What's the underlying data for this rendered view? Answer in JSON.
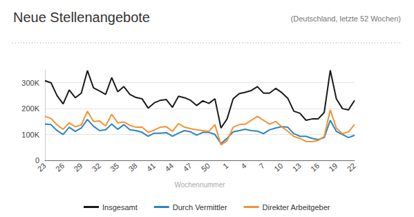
{
  "chart_data": {
    "type": "line",
    "title": "Neue Stellenangebote",
    "subtitle": "(Deutschland, letzte 52 Wochen)",
    "x_label": "Wochennummer",
    "categories": [
      "23",
      null,
      null,
      "26",
      null,
      null,
      "29",
      null,
      null,
      "32",
      null,
      null,
      "35",
      null,
      null,
      "38",
      null,
      null,
      "41",
      null,
      null,
      "44",
      null,
      null,
      "47",
      null,
      null,
      "50",
      null,
      null,
      "1",
      null,
      null,
      "4",
      null,
      null,
      "7",
      null,
      null,
      "10",
      null,
      null,
      "13",
      null,
      null,
      "16",
      null,
      null,
      "19",
      null,
      null,
      "22"
    ],
    "series": [
      {
        "name": "Insgesamt",
        "color": "#1a1a1a",
        "values": [
          308000,
          300000,
          250000,
          218000,
          272000,
          242000,
          260000,
          347000,
          280000,
          268000,
          255000,
          320000,
          265000,
          285000,
          255000,
          243000,
          238000,
          202000,
          222000,
          232000,
          235000,
          205000,
          248000,
          242000,
          232000,
          212000,
          230000,
          220000,
          238000,
          125000,
          160000,
          238000,
          258000,
          263000,
          270000,
          285000,
          260000,
          260000,
          278000,
          262000,
          240000,
          190000,
          182000,
          155000,
          160000,
          160000,
          185000,
          348000,
          238000,
          200000,
          195000,
          232000
        ]
      },
      {
        "name": "Durch Vermittler",
        "color": "#2b84c0",
        "values": [
          140000,
          138000,
          115000,
          100000,
          128000,
          112000,
          125000,
          158000,
          132000,
          115000,
          118000,
          140000,
          120000,
          138000,
          118000,
          115000,
          108000,
          93000,
          105000,
          105000,
          107000,
          93000,
          105000,
          115000,
          110000,
          97000,
          108000,
          108000,
          100000,
          65000,
          85000,
          110000,
          115000,
          120000,
          115000,
          113000,
          103000,
          118000,
          125000,
          130000,
          128000,
          103000,
          93000,
          93000,
          85000,
          80000,
          88000,
          155000,
          112000,
          100000,
          88000,
          97000
        ]
      },
      {
        "name": "Direkter Arbeitgeber",
        "color": "#f39232",
        "values": [
          170000,
          162000,
          137000,
          120000,
          145000,
          130000,
          137000,
          190000,
          150000,
          152000,
          133000,
          178000,
          145000,
          148000,
          135000,
          128000,
          128000,
          108000,
          117000,
          128000,
          130000,
          112000,
          142000,
          128000,
          122000,
          118000,
          115000,
          112000,
          138000,
          60000,
          75000,
          128000,
          138000,
          140000,
          155000,
          170000,
          155000,
          140000,
          150000,
          130000,
          112000,
          92000,
          85000,
          73000,
          72000,
          77000,
          92000,
          195000,
          125000,
          103000,
          110000,
          138000
        ]
      }
    ],
    "ylim": [
      0,
      350000
    ],
    "yticks": [
      0,
      {
        "value": 100000,
        "label": "100K"
      },
      {
        "value": 200000,
        "label": "200K"
      },
      {
        "value": 300000,
        "label": "300K"
      }
    ],
    "grid": true,
    "legend": "bottom"
  }
}
